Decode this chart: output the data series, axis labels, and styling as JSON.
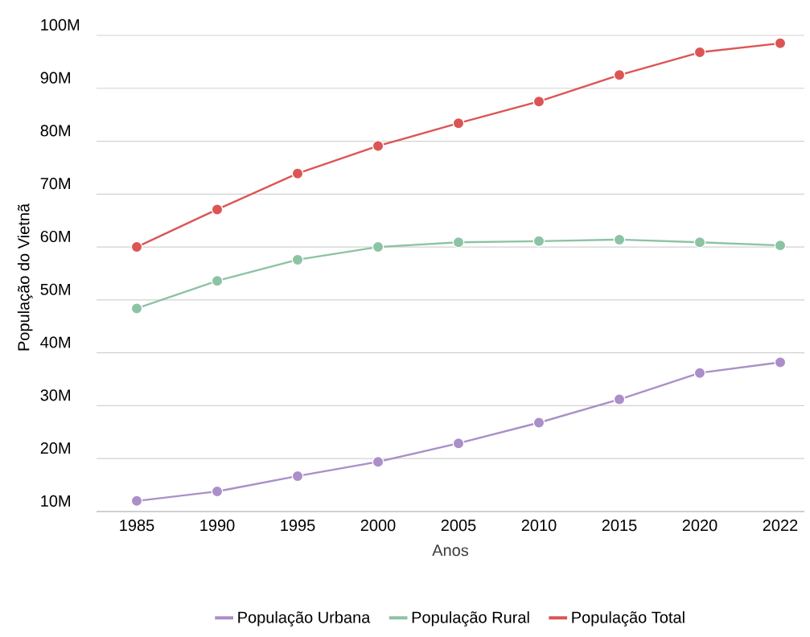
{
  "chart_data": {
    "type": "line",
    "xlabel": "Anos",
    "ylabel": "População do Vietnã",
    "categories": [
      "1985",
      "1990",
      "1995",
      "2000",
      "2005",
      "2010",
      "2015",
      "2020",
      "2022"
    ],
    "series": [
      {
        "name": "População Urbana",
        "color": "#ab8fc8",
        "values": [
          12.0,
          13.8,
          16.7,
          19.4,
          22.9,
          26.8,
          31.2,
          36.2,
          38.2
        ]
      },
      {
        "name": "População Rural",
        "color": "#8cc3a4",
        "values": [
          48.4,
          53.6,
          57.6,
          60.0,
          60.9,
          61.1,
          61.4,
          60.9,
          60.3
        ]
      },
      {
        "name": "População Total",
        "color": "#dc5555",
        "values": [
          60.0,
          67.1,
          73.9,
          79.1,
          83.4,
          87.5,
          92.5,
          96.8,
          98.5
        ]
      }
    ],
    "ylim": [
      10,
      100
    ],
    "yticks": [
      {
        "value": 10,
        "label": "10M"
      },
      {
        "value": 20,
        "label": "20M"
      },
      {
        "value": 30,
        "label": "30M"
      },
      {
        "value": 40,
        "label": "40M"
      },
      {
        "value": 50,
        "label": "50M"
      },
      {
        "value": 60,
        "label": "60M"
      },
      {
        "value": 70,
        "label": "70M"
      },
      {
        "value": 80,
        "label": "80M"
      },
      {
        "value": 90,
        "label": "90M"
      },
      {
        "value": 100,
        "label": "100M"
      }
    ],
    "grid": "y",
    "legend": "bottom",
    "marker": "circle",
    "line_style": "solid"
  }
}
